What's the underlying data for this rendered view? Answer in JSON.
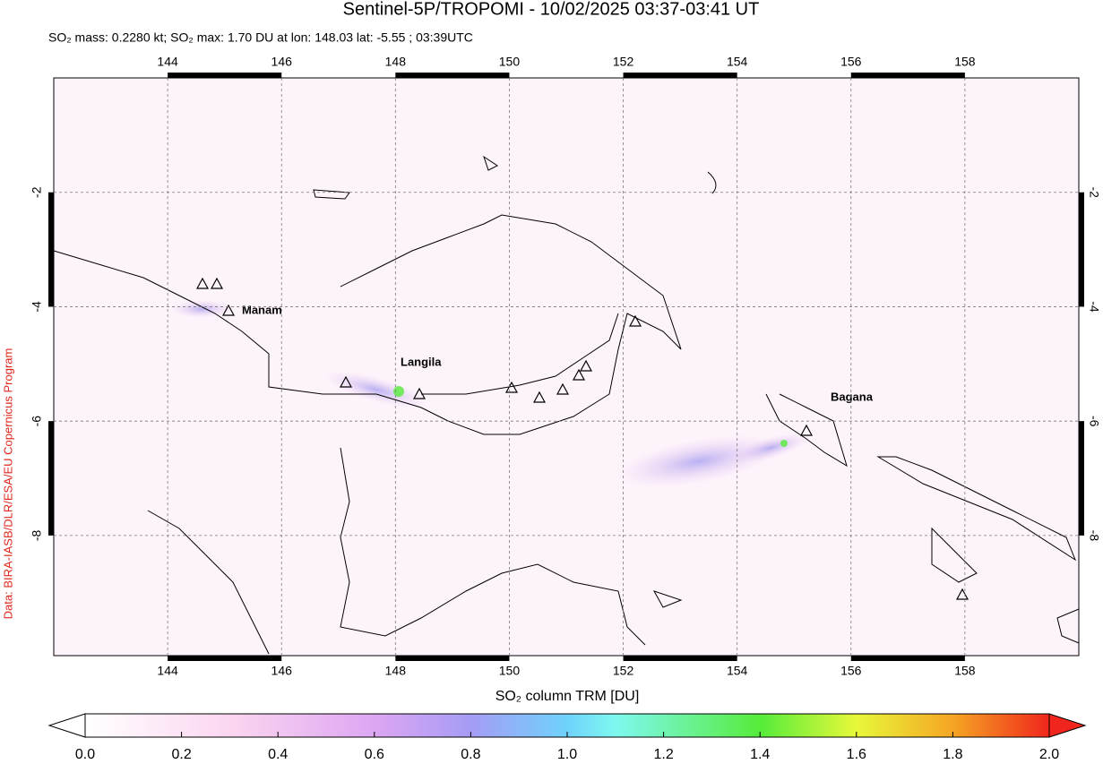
{
  "title": "Sentinel-5P/TROPOMI - 10/02/2025 03:37-03:41 UT",
  "subtitle": "SO₂ mass: 0.2280 kt; SO₂ max: 1.70 DU at lon: 148.03 lat: -5.55 ; 03:39UTC",
  "credit": "Data: BIRA-IASB/DLR/ESA/EU Copernicus Program",
  "map": {
    "xlim": [
      142,
      160
    ],
    "ylim": [
      -10.1,
      0
    ],
    "xticks": [
      144,
      146,
      148,
      150,
      152,
      154,
      156,
      158
    ],
    "yticks": [
      -2,
      -4,
      -6,
      -8
    ],
    "grid": true
  },
  "volcano_labels": [
    "Manam",
    "Langila",
    "Bagana"
  ],
  "colorbar": {
    "label": "SO₂ column TRM [DU]",
    "lim": [
      0,
      2
    ],
    "ticks": [
      {
        "value": 0,
        "label": "0.0"
      },
      0.2,
      0.4,
      0.6,
      0.8,
      {
        "value": 1,
        "label": "1.0"
      },
      1.2,
      1.4,
      1.6,
      1.8,
      {
        "value": 2,
        "label": "2.0"
      }
    ]
  }
}
